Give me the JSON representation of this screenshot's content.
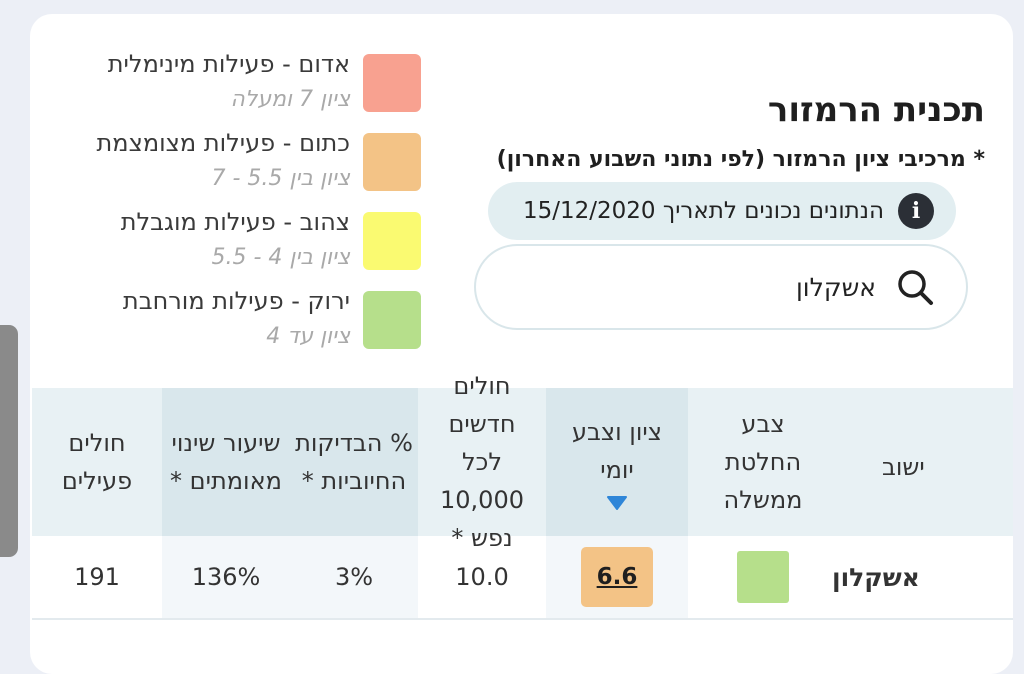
{
  "header": {
    "title": "תכנית הרמזור",
    "subtitle": "* מרכיבי ציון הרמזור (לפי נתוני השבוע האחרון)",
    "date_label": "הנתונים נכונים לתאריך 15/12/2020",
    "info_icon_glyph": "i"
  },
  "search": {
    "value": "אשקלון",
    "icon": "search-icon"
  },
  "legend": {
    "items": [
      {
        "label": "אדום - פעילות מינימלית",
        "range": "ציון 7 ומעלה",
        "color": "#f8a190"
      },
      {
        "label": "כתום - פעילות מצומצמת",
        "range": "ציון בין 5.5 - 7",
        "color": "#f3c386"
      },
      {
        "label": "צהוב - פעילות מוגבלת",
        "range": "ציון בין 4 - 5.5",
        "color": "#fafa71"
      },
      {
        "label": "ירוק - פעילות מורחבת",
        "range": "ציון עד 4",
        "color": "#b6df8b"
      }
    ]
  },
  "table": {
    "headers": {
      "city": "ישוב",
      "gov_color": "צבע החלטת ממשלה",
      "daily_score": "ציון וצבע יומי",
      "new_cases": "חולים חדשים לכל 10,000 נפש *",
      "positive_pct": "% הבדיקות החיוביות *",
      "change_rate": "שיעור שינוי מאומתים *",
      "active_cases": "חולים פעילים"
    },
    "rows": [
      {
        "city": "אשקלון",
        "gov_color": "#b6df8b",
        "daily_score": "6.6",
        "daily_color": "#f3c386",
        "new_cases": "10.0",
        "positive_pct": "3%",
        "change_rate": "136%",
        "active_cases": "191"
      }
    ]
  }
}
